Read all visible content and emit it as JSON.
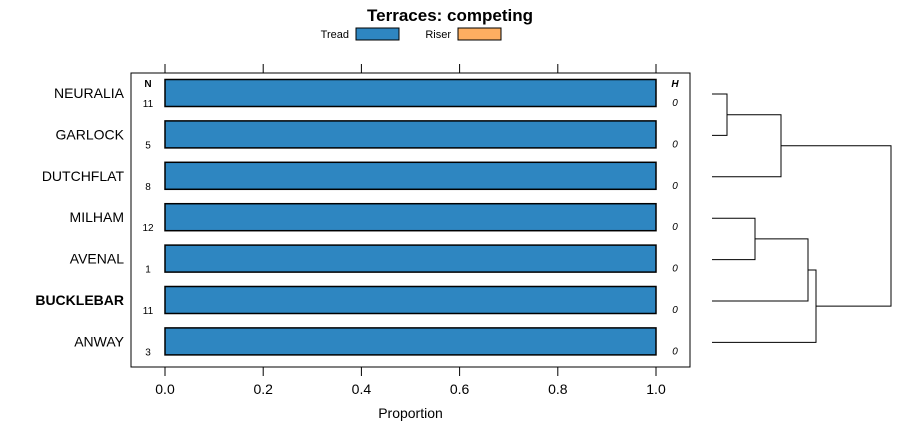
{
  "chart_data": {
    "type": "bar",
    "title": "Terraces: competing",
    "xlabel": "Proportion",
    "ylabel": "",
    "xlim": [
      -0.07,
      1.07
    ],
    "xticks": [
      "0.0",
      "0.2",
      "0.4",
      "0.6",
      "0.8",
      "1.0"
    ],
    "xtick_values": [
      0,
      0.2,
      0.4,
      0.6,
      0.8,
      1.0
    ],
    "stacked": true,
    "legend_position": "top",
    "categories": [
      "NEURALIA",
      "GARLOCK",
      "DUTCHFLAT",
      "MILHAM",
      "AVENAL",
      "BUCKLEBAR",
      "ANWAY"
    ],
    "highlighted_category": "BUCKLEBAR",
    "series": [
      {
        "name": "Tread",
        "color": "#2e86c1",
        "values": [
          1,
          1,
          1,
          1,
          1,
          1,
          1
        ]
      },
      {
        "name": "Riser",
        "color": "#fdae61",
        "values": [
          0,
          0,
          0,
          0,
          0,
          0,
          0
        ]
      }
    ],
    "n_header": "N",
    "n_values": [
      "11",
      "5",
      "8",
      "12",
      "1",
      "11",
      "3"
    ],
    "h_header": "H",
    "h_values": [
      "0",
      "0",
      "0",
      "0",
      "0",
      "0",
      "0"
    ],
    "dendrogram": "hierarchical clustering of categories"
  }
}
